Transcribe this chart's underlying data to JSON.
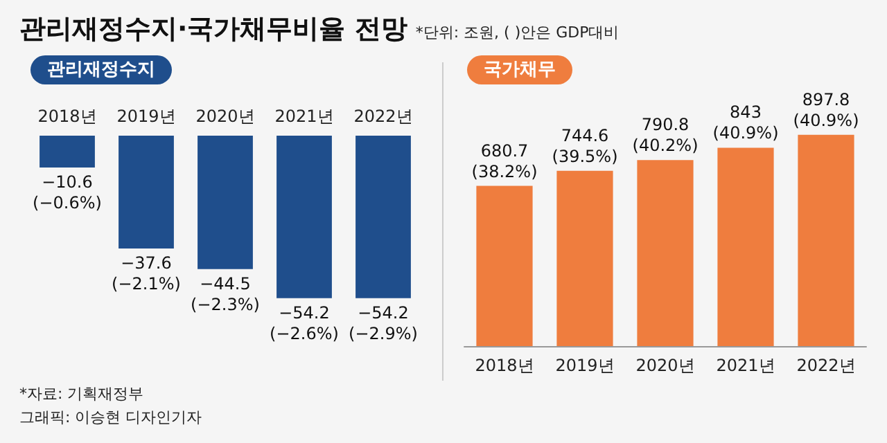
{
  "chart_data": [
    {
      "type": "other",
      "title": "관리재정수지·국가채무비율 전망",
      "subtitle": "*단위: 조원, ( )안은 GDP대비",
      "annotations": [
        "*자료: 기획재정부",
        "그래픽: 이승현 디자인기자"
      ]
    },
    {
      "type": "bar",
      "title": "관리재정수지",
      "categories": [
        "2018년",
        "2019년",
        "2020년",
        "2021년",
        "2022년"
      ],
      "values": [
        -10.6,
        -37.6,
        -44.5,
        -54.2,
        -54.2
      ],
      "value_labels": [
        "−10.6\n(−0.6%)",
        "−37.6\n(−2.1%)",
        "−44.5\n(−2.3%)",
        "−54.2\n(−2.6%)",
        "−54.2\n(−2.9%)"
      ],
      "color": "#1f4e8c"
    },
    {
      "type": "bar",
      "title": "국가채무",
      "categories": [
        "2018년",
        "2019년",
        "2020년",
        "2021년",
        "2022년"
      ],
      "values": [
        680.7,
        744.6,
        790.8,
        843,
        897.8
      ],
      "value_labels": [
        "680.7\n(38.2%)",
        "744.6\n(39.5%)",
        "790.8\n(40.2%)",
        "843\n(40.9%)",
        "897.8\n(40.9%)"
      ],
      "color": "#ef7d3e"
    }
  ]
}
